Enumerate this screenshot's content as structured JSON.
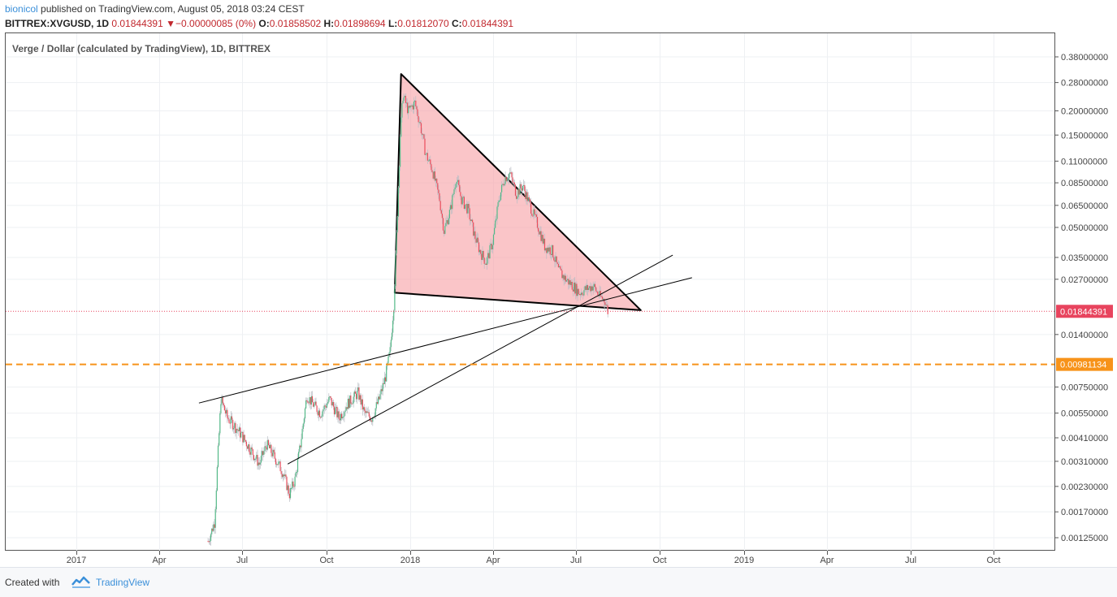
{
  "header": {
    "user": "bionicol",
    "published_text": " published on TradingView.com, August 05, 2018 03:24 CEST"
  },
  "ohlc": {
    "symbol": "BITTREX:XVGUSD, 1D",
    "last": "0.01844391",
    "arrow": "▼",
    "change": "−0.00000085 (0%)",
    "o_label": "O:",
    "o": "0.01858502",
    "h_label": "H:",
    "h": "0.01898694",
    "l_label": "L:",
    "l": "0.01812070",
    "c_label": "C:",
    "c": "0.01844391"
  },
  "chart_data": {
    "type": "candlestick",
    "title": "Verge / Dollar (calculated by TradingView), 1D, BITTREX",
    "scale": "log",
    "x_ticks": [
      "2017",
      "Apr",
      "Jul",
      "Oct",
      "2018",
      "Apr",
      "Jul",
      "Oct",
      "2019",
      "Apr",
      "Jul",
      "Oct"
    ],
    "y_ticks": [
      "0.38000000",
      "0.28000000",
      "0.20000000",
      "0.15000000",
      "0.11000000",
      "0.08500000",
      "0.06500000",
      "0.05000000",
      "0.03500000",
      "0.02700000",
      "0.01400000",
      "0.00750000",
      "0.00550000",
      "0.00410000",
      "0.00310000",
      "0.00230000",
      "0.00170000",
      "0.00125000"
    ],
    "y_tick_values": [
      0.38,
      0.28,
      0.2,
      0.15,
      0.11,
      0.085,
      0.065,
      0.05,
      0.035,
      0.027,
      0.014,
      0.0075,
      0.0055,
      0.0041,
      0.0031,
      0.0023,
      0.0017,
      0.00125
    ],
    "price_path": [
      [
        "2017-05-25",
        0.0012
      ],
      [
        "2017-06-01",
        0.0015
      ],
      [
        "2017-06-05",
        0.0035
      ],
      [
        "2017-06-08",
        0.0065
      ],
      [
        "2017-06-15",
        0.0052
      ],
      [
        "2017-06-22",
        0.0048
      ],
      [
        "2017-07-01",
        0.0042
      ],
      [
        "2017-07-10",
        0.0036
      ],
      [
        "2017-07-20",
        0.003
      ],
      [
        "2017-07-28",
        0.0038
      ],
      [
        "2017-08-05",
        0.0033
      ],
      [
        "2017-08-15",
        0.0027
      ],
      [
        "2017-08-22",
        0.0021
      ],
      [
        "2017-08-28",
        0.0025
      ],
      [
        "2017-09-03",
        0.0038
      ],
      [
        "2017-09-10",
        0.0068
      ],
      [
        "2017-09-18",
        0.006
      ],
      [
        "2017-09-25",
        0.0055
      ],
      [
        "2017-10-05",
        0.0065
      ],
      [
        "2017-10-15",
        0.0052
      ],
      [
        "2017-10-25",
        0.0062
      ],
      [
        "2017-11-05",
        0.007
      ],
      [
        "2017-11-12",
        0.0055
      ],
      [
        "2017-11-20",
        0.0052
      ],
      [
        "2017-11-28",
        0.0065
      ],
      [
        "2017-12-05",
        0.0085
      ],
      [
        "2017-12-10",
        0.0115
      ],
      [
        "2017-12-14",
        0.02
      ],
      [
        "2017-12-18",
        0.06
      ],
      [
        "2017-12-21",
        0.15
      ],
      [
        "2017-12-24",
        0.24
      ],
      [
        "2017-12-30",
        0.2
      ],
      [
        "2018-01-06",
        0.22
      ],
      [
        "2018-01-12",
        0.17
      ],
      [
        "2018-01-18",
        0.12
      ],
      [
        "2018-01-25",
        0.1
      ],
      [
        "2018-02-02",
        0.07
      ],
      [
        "2018-02-07",
        0.048
      ],
      [
        "2018-02-14",
        0.062
      ],
      [
        "2018-02-20",
        0.09
      ],
      [
        "2018-02-26",
        0.07
      ],
      [
        "2018-03-05",
        0.062
      ],
      [
        "2018-03-12",
        0.046
      ],
      [
        "2018-03-18",
        0.038
      ],
      [
        "2018-03-25",
        0.033
      ],
      [
        "2018-04-01",
        0.042
      ],
      [
        "2018-04-08",
        0.07
      ],
      [
        "2018-04-14",
        0.09
      ],
      [
        "2018-04-20",
        0.095
      ],
      [
        "2018-04-27",
        0.075
      ],
      [
        "2018-05-04",
        0.082
      ],
      [
        "2018-05-12",
        0.065
      ],
      [
        "2018-05-20",
        0.052
      ],
      [
        "2018-05-28",
        0.04
      ],
      [
        "2018-06-05",
        0.038
      ],
      [
        "2018-06-12",
        0.03
      ],
      [
        "2018-06-20",
        0.027
      ],
      [
        "2018-06-28",
        0.025
      ],
      [
        "2018-07-05",
        0.023
      ],
      [
        "2018-07-12",
        0.024
      ],
      [
        "2018-07-20",
        0.025
      ],
      [
        "2018-07-27",
        0.022
      ],
      [
        "2018-08-02",
        0.021
      ],
      [
        "2018-08-05",
        0.0184
      ]
    ],
    "current_price_label": "0.01844391",
    "support_level_label": "0.00981134",
    "support_level": 0.00981134,
    "current_price": 0.01844391,
    "triangle": [
      [
        "2017-12-15",
        0.023
      ],
      [
        "2017-12-22",
        0.31
      ],
      [
        "2018-09-10",
        0.0187
      ]
    ],
    "trendline_upper": [
      [
        "2017-05-15",
        0.0062
      ],
      [
        "2018-11-05",
        0.0275
      ]
    ],
    "trendline_lower": [
      [
        "2017-08-20",
        0.003
      ],
      [
        "2018-10-15",
        0.036
      ]
    ],
    "colors": {
      "up": "#53b987",
      "down": "#eb4d5c",
      "triangle_fill": "#f7a1a6",
      "support": "#f7931a",
      "current": "#e8445e"
    }
  },
  "footer": {
    "created_with": "Created with",
    "brand": "TradingView"
  }
}
